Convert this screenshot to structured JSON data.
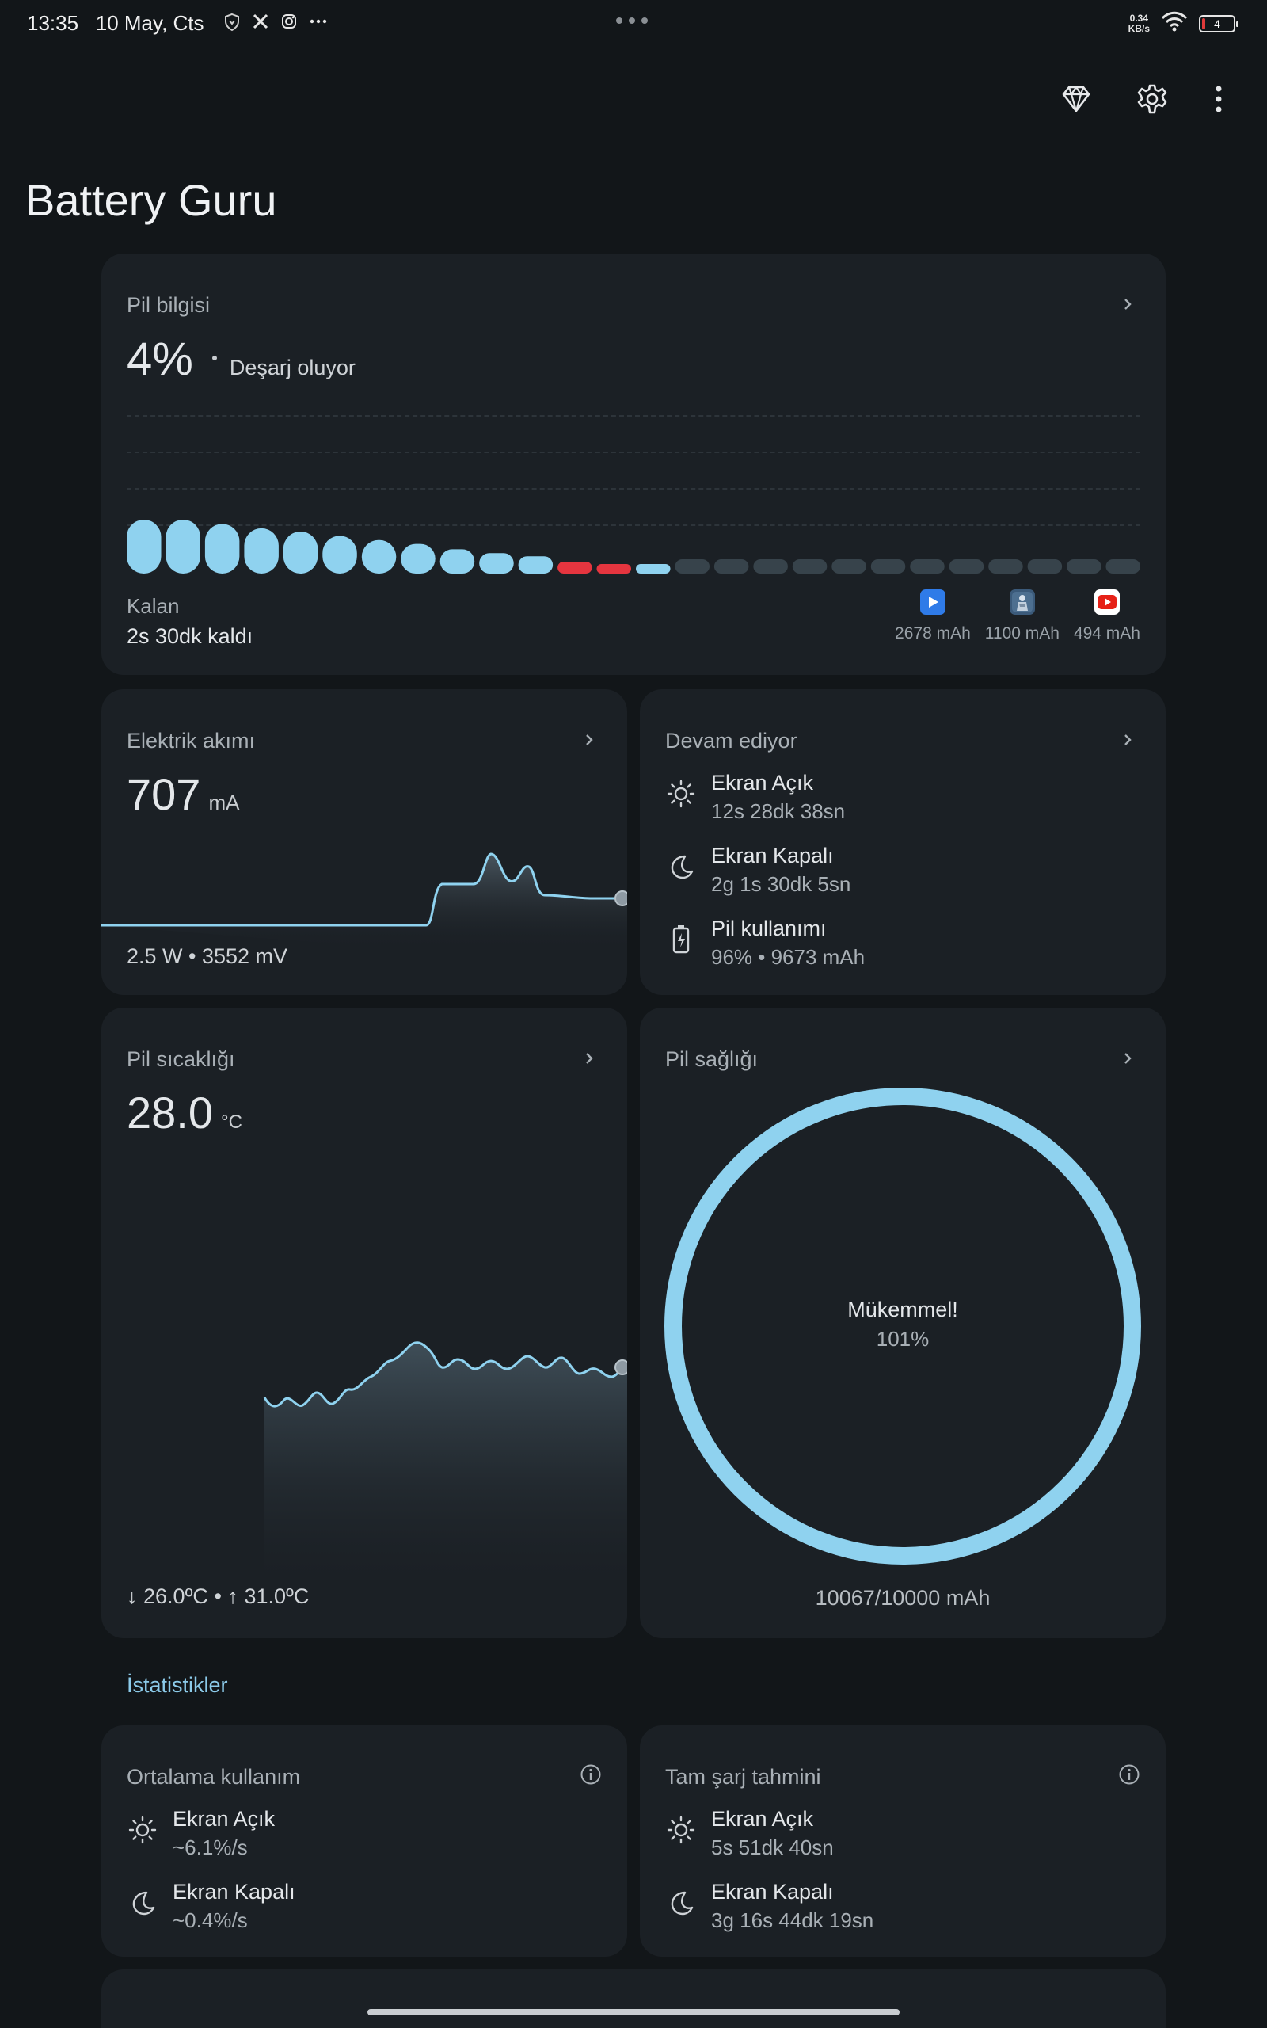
{
  "status_bar": {
    "time": "13:35",
    "date": "10 May, Cts",
    "net_speed_value": "0.34",
    "net_speed_unit": "KB/s",
    "battery_level": "4"
  },
  "app": {
    "title": "Battery Guru"
  },
  "battery_card": {
    "title": "Pil bilgisi",
    "percent": "4%",
    "state": "Deşarj oluyor",
    "remaining_label": "Kalan",
    "remaining_value": "2s 30dk kaldı",
    "apps": [
      {
        "icon": "play-store-icon",
        "mah": "2678 mAh",
        "color": "#2f7be8"
      },
      {
        "icon": "game-app-icon",
        "mah": "1100 mAh",
        "color": "#3b5a7a"
      },
      {
        "icon": "youtube-icon",
        "mah": "494 mAh",
        "color": "#ffffff"
      }
    ],
    "bar_levels": [
      1.0,
      1.0,
      0.92,
      0.84,
      0.78,
      0.7,
      0.62,
      0.55,
      0.45,
      0.38,
      0.32,
      0.22,
      0.16,
      0.12,
      0.28,
      0.28,
      0.28,
      0.28,
      0.28,
      0.28,
      0.28,
      0.28,
      0.28,
      0.28,
      0.28,
      0.28
    ],
    "bar_states": [
      "c",
      "c",
      "c",
      "c",
      "c",
      "c",
      "c",
      "c",
      "c",
      "c",
      "c",
      "d",
      "d",
      "c",
      "e",
      "e",
      "e",
      "e",
      "e",
      "e",
      "e",
      "e",
      "e",
      "e",
      "e",
      "e"
    ],
    "colors": {
      "charge": "#8fd2ef",
      "drain": "#e5353f",
      "empty": "#37434b"
    }
  },
  "current_card": {
    "title": "Elektrik akımı",
    "value": "707",
    "unit": "mA",
    "footer": "2.5 W • 3552 mV"
  },
  "ongoing_card": {
    "title": "Devam ediyor",
    "items": [
      {
        "icon": "sun-icon",
        "title": "Ekran Açık",
        "value": "12s 28dk 38sn"
      },
      {
        "icon": "moon-icon",
        "title": "Ekran Kapalı",
        "value": "2g 1s 30dk 5sn"
      },
      {
        "icon": "battery-charge-icon",
        "title": "Pil kullanımı",
        "value": "96% • 9673 mAh"
      }
    ]
  },
  "temp_card": {
    "title": "Pil sıcaklığı",
    "value": "28.0",
    "unit": "°C",
    "min": "26.0ºC",
    "max": "31.0ºC",
    "separator": "•"
  },
  "health_card": {
    "title": "Pil sağlığı",
    "label": "Mükemmel!",
    "percent": "101%",
    "capacity": "10067/10000 mAh",
    "ring_color": "#8fd2ef"
  },
  "statistics": {
    "section_title": "İstatistikler",
    "average_usage": {
      "title": "Ortalama kullanım",
      "items": [
        {
          "icon": "sun-icon",
          "title": "Ekran Açık",
          "value": "~6.1%/s"
        },
        {
          "icon": "moon-icon",
          "title": "Ekran Kapalı",
          "value": "~0.4%/s"
        }
      ]
    },
    "full_charge_estimate": {
      "title": "Tam şarj tahmini",
      "items": [
        {
          "icon": "sun-icon",
          "title": "Ekran Açık",
          "value": "5s 51dk 40sn"
        },
        {
          "icon": "moon-icon",
          "title": "Ekran Kapalı",
          "value": "3g 16s 44dk 19sn"
        }
      ]
    }
  }
}
